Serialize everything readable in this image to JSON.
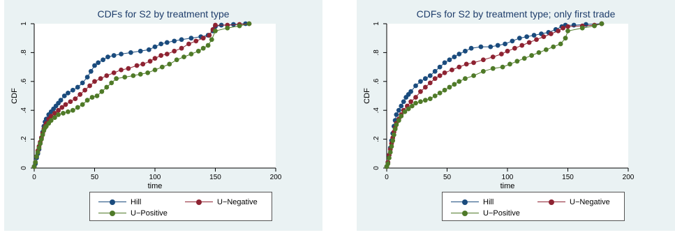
{
  "chart_data": [
    {
      "type": "line",
      "title": "CDFs for S2 by treatment type",
      "xlabel": "time",
      "ylabel": "CDF",
      "xlim": [
        0,
        200
      ],
      "ylim": [
        0,
        1
      ],
      "xticks": [
        "0",
        "50",
        "100",
        "150",
        "200"
      ],
      "yticks": [
        "0",
        ".2",
        ".4",
        ".6",
        ".8",
        "1"
      ],
      "grid": false,
      "legend_position": "bottom",
      "series": [
        {
          "name": "Hill",
          "color": "#1a4b7d",
          "points": [
            [
              0,
              0.01
            ],
            [
              1,
              0.03
            ],
            [
              2,
              0.07
            ],
            [
              3,
              0.1
            ],
            [
              4,
              0.13
            ],
            [
              5,
              0.17
            ],
            [
              6,
              0.21
            ],
            [
              7,
              0.25
            ],
            [
              8,
              0.29
            ],
            [
              9,
              0.32
            ],
            [
              10,
              0.34
            ],
            [
              12,
              0.37
            ],
            [
              14,
              0.39
            ],
            [
              16,
              0.41
            ],
            [
              18,
              0.43
            ],
            [
              20,
              0.45
            ],
            [
              22,
              0.47
            ],
            [
              25,
              0.5
            ],
            [
              28,
              0.52
            ],
            [
              32,
              0.54
            ],
            [
              36,
              0.56
            ],
            [
              40,
              0.59
            ],
            [
              44,
              0.63
            ],
            [
              47,
              0.67
            ],
            [
              50,
              0.71
            ],
            [
              53,
              0.73
            ],
            [
              57,
              0.75
            ],
            [
              61,
              0.77
            ],
            [
              66,
              0.78
            ],
            [
              72,
              0.79
            ],
            [
              80,
              0.8
            ],
            [
              88,
              0.81
            ],
            [
              95,
              0.82
            ],
            [
              100,
              0.84
            ],
            [
              105,
              0.86
            ],
            [
              110,
              0.87
            ],
            [
              116,
              0.88
            ],
            [
              122,
              0.89
            ],
            [
              130,
              0.9
            ],
            [
              138,
              0.91
            ],
            [
              144,
              0.92
            ],
            [
              148,
              0.95
            ],
            [
              150,
              0.98
            ],
            [
              155,
              0.99
            ],
            [
              165,
              0.995
            ],
            [
              175,
              1.0
            ]
          ]
        },
        {
          "name": "U−Negative",
          "color": "#8e2332",
          "points": [
            [
              0,
              0.01
            ],
            [
              1,
              0.04
            ],
            [
              2,
              0.08
            ],
            [
              3,
              0.12
            ],
            [
              4,
              0.15
            ],
            [
              5,
              0.18
            ],
            [
              6,
              0.21
            ],
            [
              7,
              0.24
            ],
            [
              8,
              0.27
            ],
            [
              9,
              0.29
            ],
            [
              10,
              0.31
            ],
            [
              12,
              0.34
            ],
            [
              14,
              0.36
            ],
            [
              17,
              0.38
            ],
            [
              20,
              0.4
            ],
            [
              23,
              0.42
            ],
            [
              26,
              0.44
            ],
            [
              30,
              0.46
            ],
            [
              34,
              0.48
            ],
            [
              38,
              0.51
            ],
            [
              42,
              0.54
            ],
            [
              46,
              0.57
            ],
            [
              50,
              0.6
            ],
            [
              55,
              0.62
            ],
            [
              60,
              0.64
            ],
            [
              66,
              0.66
            ],
            [
              72,
              0.68
            ],
            [
              78,
              0.69
            ],
            [
              85,
              0.71
            ],
            [
              90,
              0.72
            ],
            [
              96,
              0.74
            ],
            [
              100,
              0.76
            ],
            [
              105,
              0.78
            ],
            [
              110,
              0.79
            ],
            [
              116,
              0.81
            ],
            [
              122,
              0.83
            ],
            [
              128,
              0.86
            ],
            [
              134,
              0.88
            ],
            [
              140,
              0.9
            ],
            [
              145,
              0.92
            ],
            [
              148,
              0.96
            ],
            [
              150,
              0.99
            ],
            [
              160,
              0.99
            ],
            [
              170,
              0.995
            ],
            [
              178,
              1.0
            ]
          ]
        },
        {
          "name": "U−Positive",
          "color": "#4f7a28",
          "points": [
            [
              0,
              0.01
            ],
            [
              1,
              0.04
            ],
            [
              2,
              0.08
            ],
            [
              3,
              0.11
            ],
            [
              4,
              0.14
            ],
            [
              5,
              0.17
            ],
            [
              6,
              0.2
            ],
            [
              7,
              0.23
            ],
            [
              8,
              0.26
            ],
            [
              9,
              0.28
            ],
            [
              10,
              0.29
            ],
            [
              12,
              0.31
            ],
            [
              14,
              0.33
            ],
            [
              17,
              0.35
            ],
            [
              20,
              0.37
            ],
            [
              24,
              0.38
            ],
            [
              28,
              0.39
            ],
            [
              32,
              0.4
            ],
            [
              36,
              0.42
            ],
            [
              40,
              0.44
            ],
            [
              44,
              0.47
            ],
            [
              48,
              0.49
            ],
            [
              52,
              0.5
            ],
            [
              56,
              0.53
            ],
            [
              60,
              0.56
            ],
            [
              64,
              0.59
            ],
            [
              68,
              0.62
            ],
            [
              75,
              0.63
            ],
            [
              82,
              0.64
            ],
            [
              88,
              0.65
            ],
            [
              94,
              0.66
            ],
            [
              100,
              0.68
            ],
            [
              106,
              0.7
            ],
            [
              112,
              0.72
            ],
            [
              118,
              0.75
            ],
            [
              124,
              0.77
            ],
            [
              130,
              0.79
            ],
            [
              136,
              0.81
            ],
            [
              140,
              0.83
            ],
            [
              144,
              0.85
            ],
            [
              147,
              0.89
            ],
            [
              150,
              0.95
            ],
            [
              160,
              0.97
            ],
            [
              170,
              0.985
            ],
            [
              178,
              1.0
            ]
          ]
        }
      ]
    },
    {
      "type": "line",
      "title": "CDFs for S2 by treatment type; only first  trade",
      "xlabel": "time",
      "ylabel": "CDF",
      "xlim": [
        0,
        200
      ],
      "ylim": [
        0,
        1
      ],
      "xticks": [
        "0",
        "50",
        "100",
        "150",
        "200"
      ],
      "yticks": [
        "0",
        ".2",
        ".4",
        ".6",
        ".8",
        "1"
      ],
      "grid": false,
      "legend_position": "bottom",
      "series": [
        {
          "name": "Hill",
          "color": "#1a4b7d",
          "points": [
            [
              0,
              0.01
            ],
            [
              1,
              0.04
            ],
            [
              2,
              0.09
            ],
            [
              3,
              0.14
            ],
            [
              4,
              0.19
            ],
            [
              5,
              0.24
            ],
            [
              6,
              0.29
            ],
            [
              7,
              0.33
            ],
            [
              8,
              0.37
            ],
            [
              10,
              0.4
            ],
            [
              12,
              0.43
            ],
            [
              14,
              0.46
            ],
            [
              16,
              0.49
            ],
            [
              18,
              0.51
            ],
            [
              20,
              0.53
            ],
            [
              24,
              0.57
            ],
            [
              28,
              0.6
            ],
            [
              32,
              0.62
            ],
            [
              36,
              0.64
            ],
            [
              40,
              0.67
            ],
            [
              44,
              0.7
            ],
            [
              48,
              0.73
            ],
            [
              52,
              0.75
            ],
            [
              56,
              0.77
            ],
            [
              60,
              0.79
            ],
            [
              65,
              0.81
            ],
            [
              70,
              0.83
            ],
            [
              78,
              0.84
            ],
            [
              86,
              0.84
            ],
            [
              92,
              0.85
            ],
            [
              98,
              0.86
            ],
            [
              104,
              0.88
            ],
            [
              110,
              0.9
            ],
            [
              116,
              0.91
            ],
            [
              122,
              0.92
            ],
            [
              128,
              0.93
            ],
            [
              134,
              0.94
            ],
            [
              140,
              0.96
            ],
            [
              145,
              0.98
            ],
            [
              148,
              0.99
            ],
            [
              155,
              0.99
            ],
            [
              165,
              0.995
            ],
            [
              178,
              1.0
            ]
          ]
        },
        {
          "name": "U−Negative",
          "color": "#8e2332",
          "points": [
            [
              0,
              0.01
            ],
            [
              1,
              0.04
            ],
            [
              2,
              0.09
            ],
            [
              3,
              0.13
            ],
            [
              4,
              0.17
            ],
            [
              5,
              0.21
            ],
            [
              6,
              0.25
            ],
            [
              7,
              0.28
            ],
            [
              8,
              0.31
            ],
            [
              10,
              0.34
            ],
            [
              12,
              0.37
            ],
            [
              14,
              0.4
            ],
            [
              17,
              0.43
            ],
            [
              20,
              0.46
            ],
            [
              24,
              0.49
            ],
            [
              28,
              0.53
            ],
            [
              32,
              0.56
            ],
            [
              36,
              0.59
            ],
            [
              40,
              0.62
            ],
            [
              44,
              0.64
            ],
            [
              48,
              0.66
            ],
            [
              54,
              0.68
            ],
            [
              60,
              0.7
            ],
            [
              66,
              0.72
            ],
            [
              72,
              0.73
            ],
            [
              80,
              0.75
            ],
            [
              88,
              0.77
            ],
            [
              95,
              0.79
            ],
            [
              100,
              0.81
            ],
            [
              106,
              0.83
            ],
            [
              112,
              0.85
            ],
            [
              118,
              0.87
            ],
            [
              124,
              0.89
            ],
            [
              130,
              0.91
            ],
            [
              136,
              0.93
            ],
            [
              142,
              0.95
            ],
            [
              146,
              0.97
            ],
            [
              150,
              0.98
            ],
            [
              162,
              0.985
            ],
            [
              172,
              0.99
            ],
            [
              178,
              1.0
            ]
          ]
        },
        {
          "name": "U−Positive",
          "color": "#4f7a28",
          "points": [
            [
              0,
              0.01
            ],
            [
              1,
              0.03
            ],
            [
              2,
              0.07
            ],
            [
              3,
              0.11
            ],
            [
              4,
              0.15
            ],
            [
              5,
              0.19
            ],
            [
              6,
              0.23
            ],
            [
              7,
              0.27
            ],
            [
              8,
              0.3
            ],
            [
              10,
              0.33
            ],
            [
              12,
              0.36
            ],
            [
              15,
              0.39
            ],
            [
              18,
              0.41
            ],
            [
              21,
              0.43
            ],
            [
              24,
              0.45
            ],
            [
              28,
              0.46
            ],
            [
              32,
              0.47
            ],
            [
              36,
              0.48
            ],
            [
              40,
              0.5
            ],
            [
              44,
              0.52
            ],
            [
              48,
              0.54
            ],
            [
              52,
              0.56
            ],
            [
              56,
              0.58
            ],
            [
              60,
              0.6
            ],
            [
              65,
              0.62
            ],
            [
              72,
              0.64
            ],
            [
              80,
              0.67
            ],
            [
              88,
              0.69
            ],
            [
              96,
              0.7
            ],
            [
              102,
              0.72
            ],
            [
              108,
              0.74
            ],
            [
              114,
              0.76
            ],
            [
              120,
              0.78
            ],
            [
              126,
              0.8
            ],
            [
              132,
              0.82
            ],
            [
              138,
              0.84
            ],
            [
              144,
              0.86
            ],
            [
              148,
              0.9
            ],
            [
              150,
              0.95
            ],
            [
              162,
              0.97
            ],
            [
              172,
              0.985
            ],
            [
              178,
              1.0
            ]
          ]
        }
      ]
    }
  ]
}
